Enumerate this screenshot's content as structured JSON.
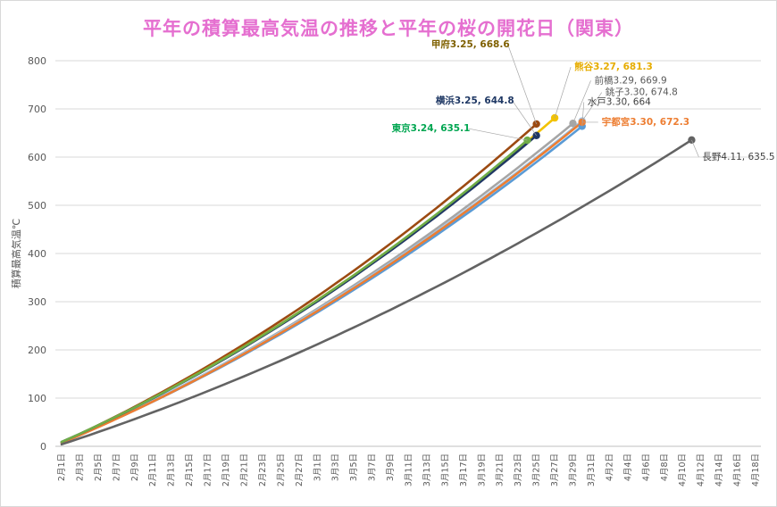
{
  "chart_data": {
    "type": "line",
    "title": "平年の積算最高気温の推移と平年の桜の開花日（関東）",
    "ylabel": "積算最高気温℃",
    "xlabel": "",
    "ylim": [
      0,
      800
    ],
    "yticks": [
      0,
      100,
      200,
      300,
      400,
      500,
      600,
      700,
      800
    ],
    "grid": true,
    "x_tick_labels": [
      "2月1日",
      "2月3日",
      "2月5日",
      "2月7日",
      "2月9日",
      "2月11日",
      "2月13日",
      "2月15日",
      "2月17日",
      "2月19日",
      "2月21日",
      "2月23日",
      "2月25日",
      "2月27日",
      "3月1日",
      "3月3日",
      "3月5日",
      "3月7日",
      "3月9日",
      "3月11日",
      "3月13日",
      "3月15日",
      "3月17日",
      "3月19日",
      "3月21日",
      "3月23日",
      "3月25日",
      "3月27日",
      "3月29日",
      "3月31日",
      "4月2日",
      "4月4日",
      "4月6日",
      "4月8日",
      "4月10日",
      "4月12日",
      "4月14日",
      "4月16日",
      "4月18日"
    ],
    "series": [
      {
        "name": "甲府",
        "color": "#9c4a12",
        "label": "甲府3.25, 668.6",
        "label_color": "#7f6000",
        "label_bold": true,
        "anchor": "left",
        "start": 8,
        "end_index": 52,
        "end_value": 668.6
      },
      {
        "name": "熊谷",
        "color": "#f2c200",
        "label": "熊谷3.27, 681.3",
        "label_color": "#e6ac00",
        "label_bold": true,
        "anchor": "right",
        "start": 8,
        "end_index": 54,
        "end_value": 681.3
      },
      {
        "name": "前橋",
        "color": "#a6a6a6",
        "label": "前橋3.29, 669.9",
        "label_color": "#595959",
        "label_bold": false,
        "anchor": "right",
        "start": 7,
        "end_index": 56,
        "end_value": 669.9
      },
      {
        "name": "銚子",
        "color": "#9dc3e6",
        "label": "銚子3.30, 674.8",
        "label_color": "#595959",
        "label_bold": false,
        "anchor": "right",
        "start": 9,
        "end_index": 57,
        "end_value": 674.8
      },
      {
        "name": "水戸",
        "color": "#5b9bd5",
        "label": "水戸3.30, 664",
        "label_color": "#404040",
        "label_bold": false,
        "anchor": "right",
        "start": 8,
        "end_index": 57,
        "end_value": 664
      },
      {
        "name": "宇都宮",
        "color": "#ed7d31",
        "label": "宇都宮3.30, 672.3",
        "label_color": "#ed7d31",
        "label_bold": true,
        "anchor": "right",
        "start": 7,
        "end_index": 57,
        "end_value": 672.3
      },
      {
        "name": "横浜",
        "color": "#203864",
        "label": "横浜3.25, 644.8",
        "label_color": "#1f3864",
        "label_bold": true,
        "anchor": "left",
        "start": 9,
        "end_index": 52,
        "end_value": 644.8
      },
      {
        "name": "東京",
        "color": "#70ad47",
        "label": "東京3.24, 635.1",
        "label_color": "#00a651",
        "label_bold": true,
        "anchor": "left",
        "start": 9,
        "end_index": 51,
        "end_value": 635.1
      },
      {
        "name": "長野",
        "color": "#636363",
        "label": "長野4.11, 635.5",
        "label_color": "#404040",
        "label_bold": false,
        "anchor": "right",
        "start": 4,
        "end_index": 69,
        "end_value": 635.5
      }
    ]
  }
}
